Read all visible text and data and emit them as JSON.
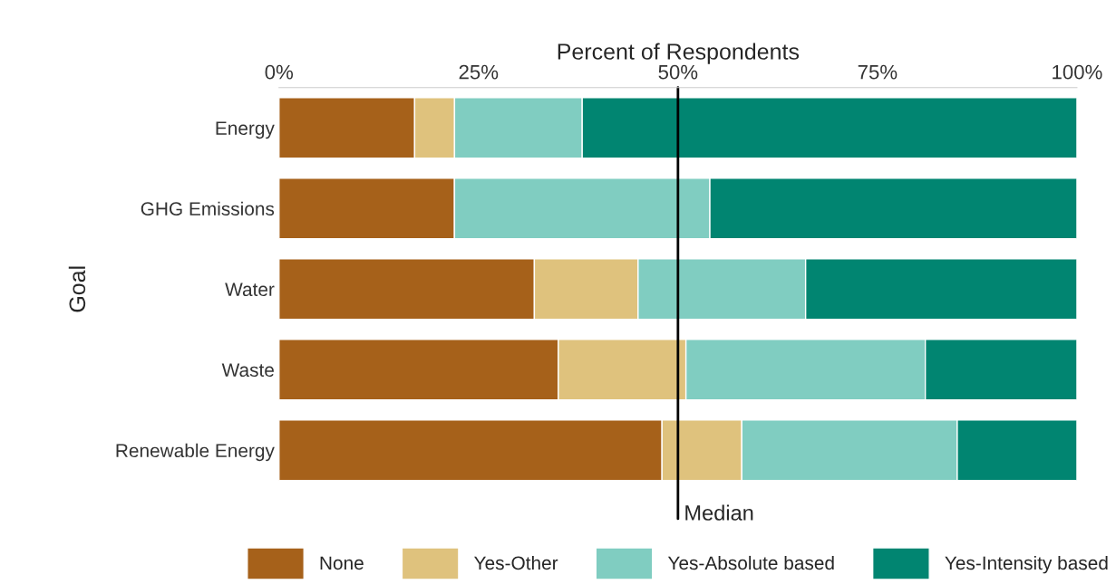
{
  "chart_data": {
    "type": "bar",
    "orientation": "horizontal",
    "stacked": true,
    "xlabel": "Percent of Respondents",
    "ylabel": "Goal",
    "categories": [
      "Energy",
      "GHG Emissions",
      "Water",
      "Waste",
      "Renewable Energy"
    ],
    "series": [
      {
        "name": "None",
        "color": "#a6611a",
        "values": [
          17,
          22,
          32,
          35,
          48
        ]
      },
      {
        "name": "Yes-Other",
        "color": "#dfc27d",
        "values": [
          5,
          0,
          13,
          16,
          10
        ]
      },
      {
        "name": "Yes-Absolute based",
        "color": "#80cdc1",
        "values": [
          16,
          32,
          21,
          30,
          27
        ]
      },
      {
        "name": "Yes-Intensity based",
        "color": "#018571",
        "values": [
          62,
          46,
          34,
          19,
          15
        ]
      }
    ],
    "xlim": [
      0,
      100
    ],
    "xticks": [
      {
        "value": 0,
        "label": "0%"
      },
      {
        "value": 25,
        "label": "25%"
      },
      {
        "value": 50,
        "label": "50%"
      },
      {
        "value": 75,
        "label": "75%"
      },
      {
        "value": 100,
        "label": "100%"
      }
    ],
    "ref_lines": [
      {
        "axis": "x",
        "value": 50,
        "label": "Median",
        "color": "#000000"
      }
    ],
    "legend": "bottom",
    "grid": false
  }
}
